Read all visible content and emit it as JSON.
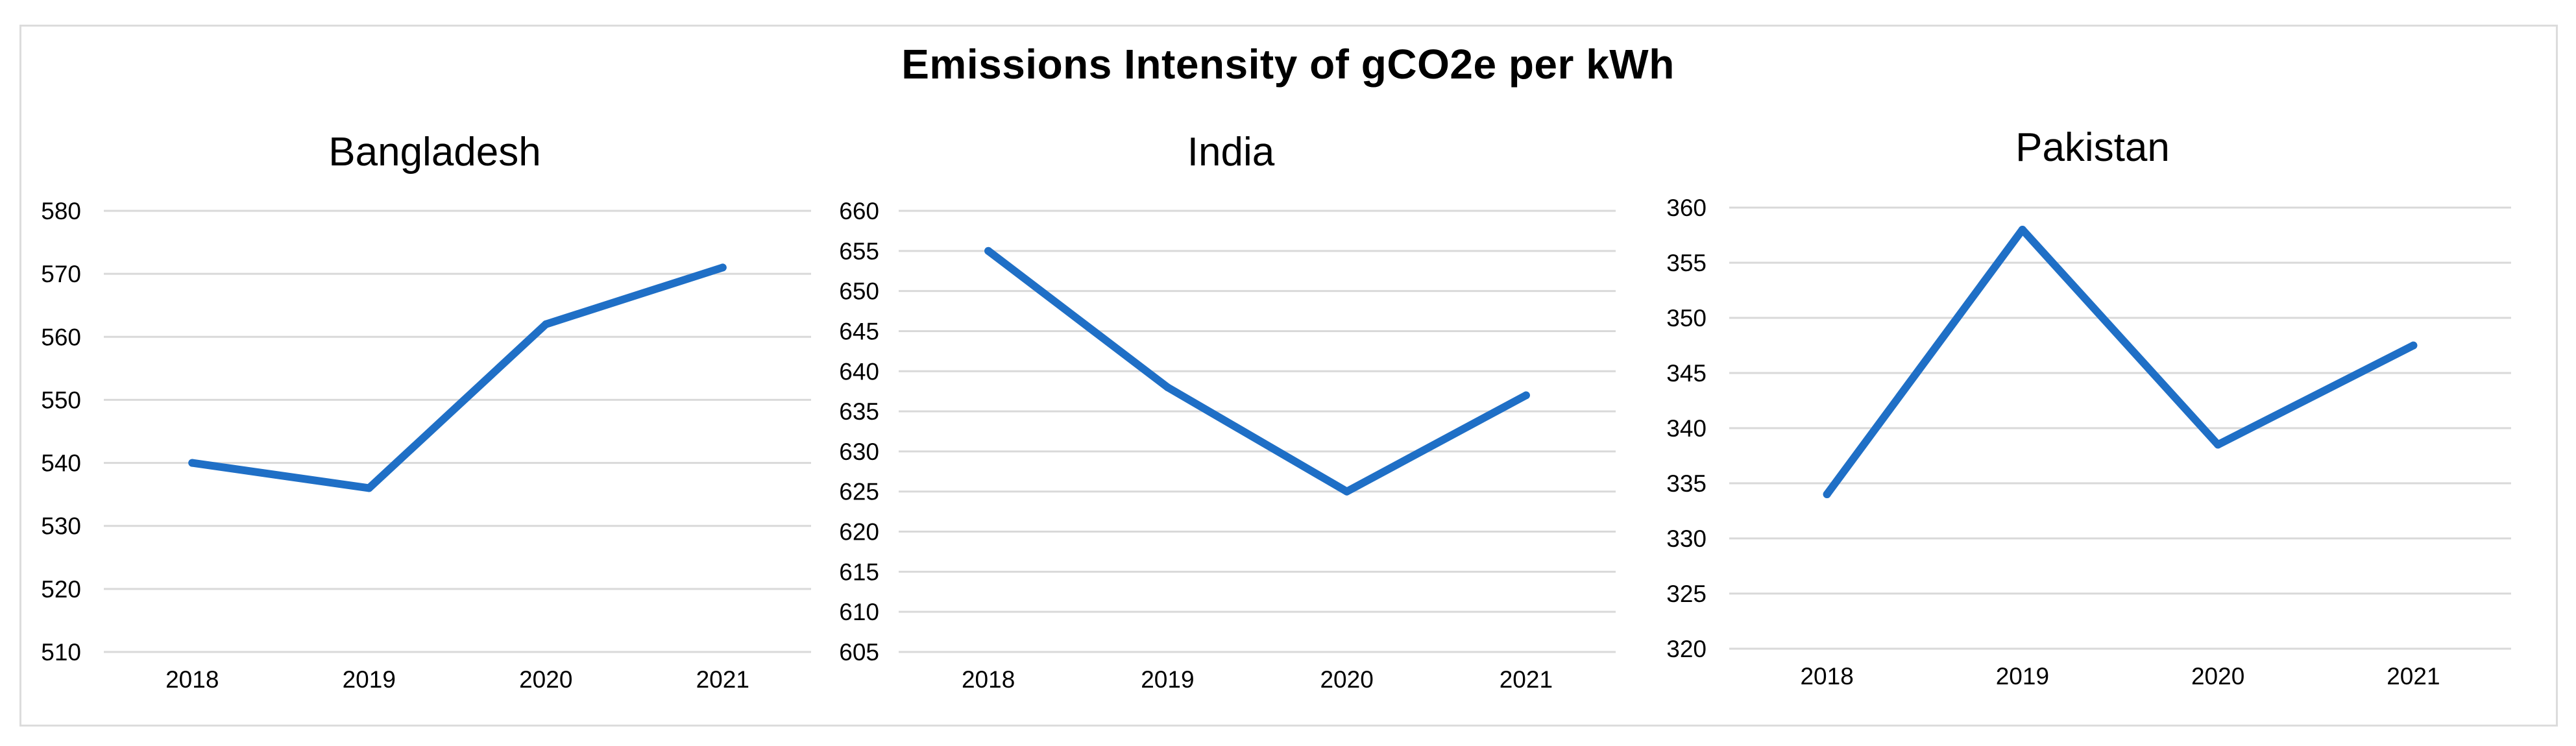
{
  "title": "Emissions Intensity of gCO2e per kWh",
  "colors": {
    "series": "#1f6fc6",
    "grid": "#d9d9d9",
    "frame": "#dcdcdc"
  },
  "chart_data": [
    {
      "type": "line",
      "title": "Bangladesh",
      "categories": [
        "2018",
        "2019",
        "2020",
        "2021"
      ],
      "values": [
        540,
        536,
        562,
        571
      ],
      "ylim": [
        510,
        580
      ],
      "yticks": [
        "580",
        "570",
        "560",
        "550",
        "540",
        "530",
        "520",
        "510"
      ],
      "grid": true,
      "xlabel": "",
      "ylabel": ""
    },
    {
      "type": "line",
      "title": "India",
      "categories": [
        "2018",
        "2019",
        "2020",
        "2021"
      ],
      "values": [
        655,
        638,
        625,
        637
      ],
      "ylim": [
        605,
        660
      ],
      "yticks": [
        "660",
        "655",
        "650",
        "645",
        "640",
        "635",
        "630",
        "625",
        "620",
        "615",
        "610",
        "605"
      ],
      "grid": true,
      "xlabel": "",
      "ylabel": ""
    },
    {
      "type": "line",
      "title": "Pakistan",
      "categories": [
        "2018",
        "2019",
        "2020",
        "2021"
      ],
      "values": [
        334,
        358,
        338.5,
        347.5
      ],
      "ylim": [
        320,
        360
      ],
      "yticks": [
        "360",
        "355",
        "350",
        "345",
        "340",
        "335",
        "330",
        "325",
        "320"
      ],
      "grid": true,
      "xlabel": "",
      "ylabel": ""
    }
  ]
}
